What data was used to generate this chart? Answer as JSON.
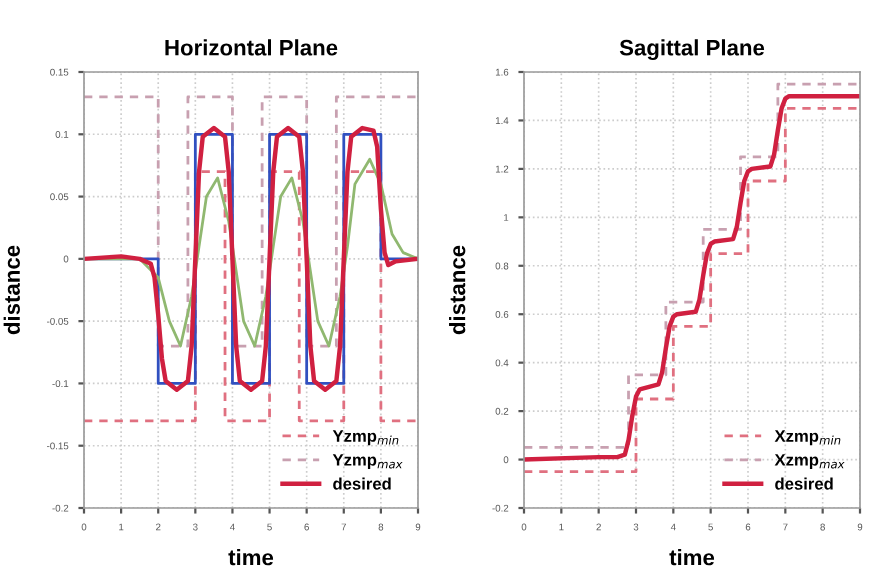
{
  "chart_data": [
    {
      "type": "line",
      "title": "Horizontal Plane",
      "xlabel": "time",
      "ylabel": "distance",
      "xlim": [
        0,
        9
      ],
      "xticks": [
        0,
        1,
        2,
        3,
        4,
        5,
        6,
        7,
        8,
        9
      ],
      "ylim": [
        -0.2,
        0.15
      ],
      "yticks": [
        -0.2,
        -0.15,
        -0.1,
        -0.05,
        0,
        0.05,
        0.1,
        0.15
      ],
      "grid": true,
      "legend": "bottom right",
      "series": [
        {
          "name": "Yzmp$_{min}$",
          "type": "step",
          "line_style": "dashed",
          "color": "#e07080",
          "x": [
            0,
            3,
            3.8,
            5,
            5.8,
            7,
            8,
            9
          ],
          "values": [
            -0.13,
            0.07,
            -0.13,
            0.07,
            -0.13,
            0.07,
            -0.13,
            -0.13
          ]
        },
        {
          "name": "Yzmp$_{max}$",
          "type": "step",
          "line_style": "dashed",
          "color": "#c8a0b0",
          "x": [
            0,
            2,
            2.8,
            4,
            4.8,
            6,
            6.8,
            9
          ],
          "values": [
            0.13,
            -0.07,
            0.13,
            -0.07,
            0.13,
            -0.07,
            0.13,
            0.13
          ]
        },
        {
          "type": "step",
          "color": "#3050c0",
          "x": [
            0,
            2,
            3,
            4,
            5,
            6,
            7,
            8,
            9
          ],
          "values": [
            0,
            -0.1,
            0.1,
            -0.1,
            0.1,
            -0.1,
            0.1,
            0,
            0
          ]
        },
        {
          "color": "#90b870",
          "x": [
            0,
            1.5,
            2.0,
            2.3,
            2.6,
            2.9,
            3.1,
            3.3,
            3.6,
            3.9,
            4.1,
            4.3,
            4.6,
            4.9,
            5.1,
            5.3,
            5.6,
            5.9,
            6.1,
            6.3,
            6.6,
            6.9,
            7.1,
            7.3,
            7.7,
            8.0,
            8.3,
            8.6,
            9
          ],
          "values": [
            0,
            0,
            -0.015,
            -0.05,
            -0.07,
            -0.03,
            0.01,
            0.05,
            0.065,
            0.03,
            -0.01,
            -0.05,
            -0.07,
            -0.03,
            0.01,
            0.05,
            0.065,
            0.03,
            -0.01,
            -0.05,
            -0.07,
            -0.03,
            0.01,
            0.06,
            0.08,
            0.06,
            0.02,
            0.005,
            0
          ]
        },
        {
          "name": "desired",
          "color": "#d02040",
          "x": [
            0,
            1,
            1.5,
            1.8,
            1.9,
            2.0,
            2.1,
            2.2,
            2.5,
            2.8,
            2.9,
            3.0,
            3.1,
            3.2,
            3.5,
            3.8,
            3.9,
            4.0,
            4.1,
            4.2,
            4.5,
            4.8,
            4.9,
            5.0,
            5.1,
            5.2,
            5.5,
            5.8,
            5.9,
            6.0,
            6.1,
            6.2,
            6.5,
            6.8,
            6.9,
            7.0,
            7.1,
            7.2,
            7.5,
            7.8,
            7.9,
            8.0,
            8.1,
            8.2,
            8.4,
            9
          ],
          "values": [
            0,
            0.002,
            0,
            -0.004,
            -0.015,
            -0.045,
            -0.08,
            -0.098,
            -0.105,
            -0.098,
            -0.07,
            0,
            0.07,
            0.098,
            0.105,
            0.098,
            0.07,
            0,
            -0.07,
            -0.098,
            -0.105,
            -0.098,
            -0.07,
            0,
            0.07,
            0.098,
            0.105,
            0.098,
            0.07,
            0,
            -0.07,
            -0.098,
            -0.105,
            -0.098,
            -0.07,
            0,
            0.07,
            0.098,
            0.105,
            0.103,
            0.09,
            0.04,
            0.005,
            -0.005,
            -0.002,
            0
          ]
        }
      ]
    },
    {
      "type": "line",
      "title": "Sagittal Plane",
      "xlabel": "time",
      "ylabel": "distance",
      "xlim": [
        0,
        9
      ],
      "xticks": [
        0,
        1,
        2,
        3,
        4,
        5,
        6,
        7,
        8,
        9
      ],
      "ylim": [
        -0.2,
        1.6
      ],
      "yticks": [
        -0.2,
        0,
        0.2,
        0.4,
        0.6,
        0.8,
        1,
        1.2,
        1.4,
        1.6
      ],
      "grid": true,
      "legend": "bottom right",
      "series": [
        {
          "name": "Xzmp$_{min}$",
          "type": "step",
          "line_style": "dashed",
          "color": "#e07080",
          "x": [
            0,
            3,
            4,
            5,
            6,
            7,
            9
          ],
          "values": [
            -0.05,
            0.25,
            0.55,
            0.85,
            1.15,
            1.45,
            1.45
          ]
        },
        {
          "name": "Xzmp$_{max}$",
          "type": "step",
          "line_style": "dashed",
          "color": "#c8a0b0",
          "x": [
            0,
            2.8,
            3.8,
            4.8,
            5.8,
            6.8,
            9
          ],
          "values": [
            0.05,
            0.35,
            0.65,
            0.95,
            1.25,
            1.55,
            1.55
          ]
        },
        {
          "name": "desired",
          "color": "#d02040",
          "x": [
            0,
            2,
            2.5,
            2.7,
            2.8,
            2.9,
            3.0,
            3.1,
            3.6,
            3.7,
            3.8,
            3.9,
            4.0,
            4.1,
            4.6,
            4.7,
            4.8,
            4.9,
            5.0,
            5.1,
            5.6,
            5.7,
            5.8,
            5.9,
            6.0,
            6.1,
            6.6,
            6.7,
            6.8,
            6.9,
            7.0,
            7.1,
            9
          ],
          "values": [
            0,
            0.01,
            0.01,
            0.02,
            0.08,
            0.18,
            0.26,
            0.29,
            0.31,
            0.36,
            0.46,
            0.55,
            0.59,
            0.6,
            0.61,
            0.66,
            0.76,
            0.85,
            0.89,
            0.9,
            0.91,
            0.96,
            1.06,
            1.15,
            1.19,
            1.2,
            1.21,
            1.26,
            1.36,
            1.45,
            1.49,
            1.5,
            1.5
          ]
        }
      ]
    }
  ]
}
